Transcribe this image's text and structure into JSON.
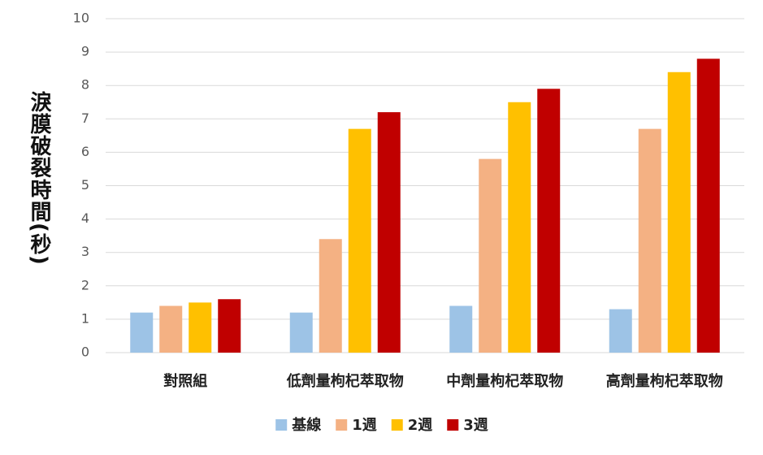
{
  "chart_data": {
    "type": "bar",
    "y_label": "淚膜破裂時間(秒)",
    "categories": [
      "對照組",
      "低劑量枸杞萃取物",
      "中劑量枸杞萃取物",
      "高劑量枸杞萃取物"
    ],
    "series": [
      {
        "name": "基線",
        "color": "#9dc3e6",
        "values": [
          1.2,
          1.2,
          1.4,
          1.3
        ]
      },
      {
        "name": "1週",
        "color": "#f4b183",
        "values": [
          1.4,
          3.4,
          5.8,
          6.7
        ]
      },
      {
        "name": "2週",
        "color": "#ffc000",
        "values": [
          1.5,
          6.7,
          7.5,
          8.4
        ]
      },
      {
        "name": "3週",
        "color": "#c00000",
        "values": [
          1.6,
          7.2,
          7.9,
          8.8
        ]
      }
    ],
    "ylim": [
      0,
      10
    ],
    "yticks": [
      0,
      1,
      2,
      3,
      4,
      5,
      6,
      7,
      8,
      9,
      10
    ],
    "grid": true,
    "legend": "bottom"
  }
}
